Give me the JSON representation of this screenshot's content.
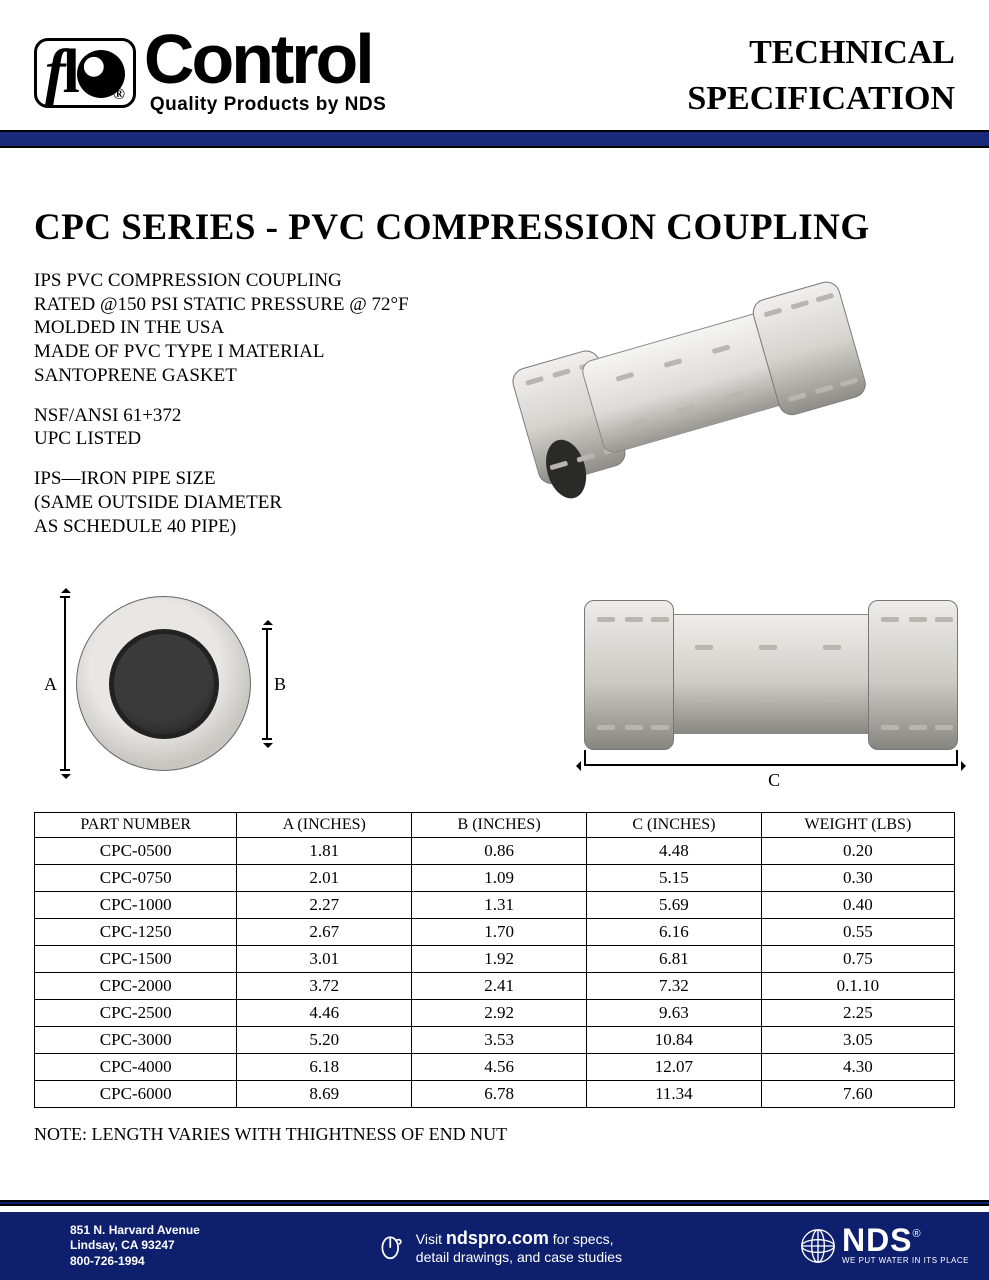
{
  "header": {
    "logo_flo": "flo",
    "logo_control": "Control",
    "tagline": "Quality Products by NDS",
    "title_line1": "TECHNICAL",
    "title_line2": "SPECIFICATION",
    "registered": "®"
  },
  "main_title": "CPC SERIES  - PVC COMPRESSION COUPLING",
  "specs": {
    "block1": "IPS PVC COMPRESSION COUPLING\nRATED @150 PSI STATIC PRESSURE @ 72°F\nMOLDED IN THE USA\nMADE OF PVC TYPE I MATERIAL\nSANTOPRENE GASKET",
    "block2": "NSF/ANSI 61+372\nUPC LISTED",
    "block3": "IPS—IRON PIPE SIZE\n(SAME OUTSIDE DIAMETER\nAS SCHEDULE 40 PIPE)"
  },
  "dims": {
    "A": "A",
    "B": "B",
    "C": "C"
  },
  "table": {
    "columns": [
      "PART NUMBER",
      "A  (INCHES)",
      "B (INCHES)",
      "C (INCHES)",
      "WEIGHT (LBS)"
    ],
    "rows": [
      [
        "CPC-0500",
        "1.81",
        "0.86",
        "4.48",
        "0.20"
      ],
      [
        "CPC-0750",
        "2.01",
        "1.09",
        "5.15",
        "0.30"
      ],
      [
        "CPC-1000",
        "2.27",
        "1.31",
        "5.69",
        "0.40"
      ],
      [
        "CPC-1250",
        "2.67",
        "1.70",
        "6.16",
        "0.55"
      ],
      [
        "CPC-1500",
        "3.01",
        "1.92",
        "6.81",
        "0.75"
      ],
      [
        "CPC-2000",
        "3.72",
        "2.41",
        "7.32",
        "0.1.10"
      ],
      [
        "CPC-2500",
        "4.46",
        "2.92",
        "9.63",
        "2.25"
      ],
      [
        "CPC-3000",
        "5.20",
        "3.53",
        "10.84",
        "3.05"
      ],
      [
        "CPC-4000",
        "6.18",
        "4.56",
        "12.07",
        "4.30"
      ],
      [
        "CPC-6000",
        "8.69",
        "6.78",
        "11.34",
        "7.60"
      ]
    ],
    "col_widths": [
      "22%",
      "19%",
      "19%",
      "19%",
      "21%"
    ]
  },
  "note": "NOTE: LENGTH VARIES WITH THIGHTNESS OF END NUT",
  "footer": {
    "addr_line1": "851 N. Harvard Avenue",
    "addr_line2": "Lindsay, CA 93247",
    "addr_line3": "800-726-1994",
    "visit_pre": "Visit",
    "visit_url": "ndspro.com",
    "visit_post1": "for specs,",
    "visit_post2": "detail drawings, and case studies",
    "nds": "NDS",
    "nds_tag": "WE PUT WATER IN ITS PLACE",
    "reg": "®"
  },
  "colors": {
    "rule_bar": "#1a2a7a",
    "footer_bar": "#0e1f6e",
    "text": "#000000",
    "bg": "#ffffff"
  }
}
